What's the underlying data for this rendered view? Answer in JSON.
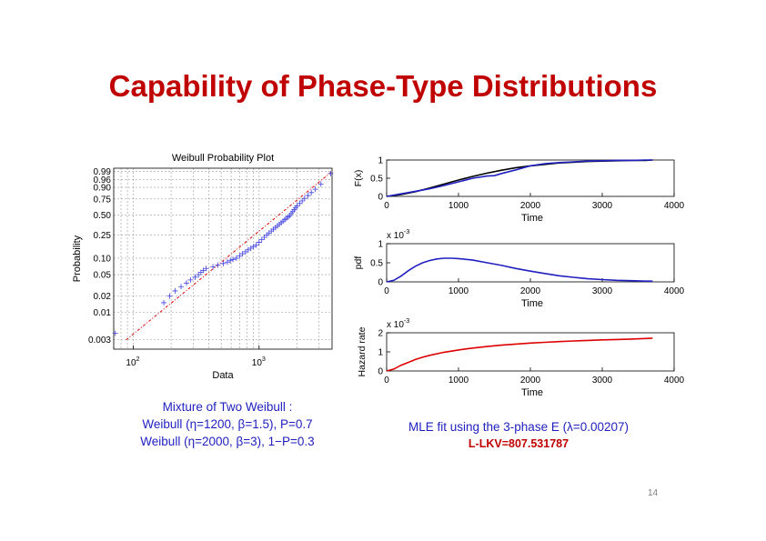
{
  "slide": {
    "title": "Capability of Phase-Type Distributions",
    "caption_left": [
      "Mixture of Two Weibull :",
      "Weibull (η=1200, β=1.5), P=0.7",
      "Weibull (η=2000, β=3), 1−P=0.3"
    ],
    "caption_right": "MLE fit using the 3-phase E (λ=0.00207)",
    "lkv": "L-LKV=807.531787",
    "page_number": "14"
  },
  "chart_data": [
    {
      "type": "scatter",
      "title": "Weibull Probability Plot",
      "xlabel": "Data",
      "ylabel": "Probability",
      "xscale": "log",
      "xlim": [
        70,
        3800
      ],
      "x_ticks": [
        {
          "base": "10",
          "exp": "2"
        },
        {
          "base": "10",
          "exp": "3"
        }
      ],
      "y_ticks": [
        "0.99",
        "0.96",
        "0.90",
        "0.75",
        "0.50",
        "0.25",
        "0.10",
        "0.05",
        "0.02",
        "0.01",
        "0.003"
      ],
      "y_tick_probs": [
        0.99,
        0.96,
        0.9,
        0.75,
        0.5,
        0.25,
        0.1,
        0.05,
        0.02,
        0.01,
        0.003
      ],
      "grid": true,
      "series": [
        {
          "marker": "+",
          "color": "#4040e0",
          "x": [
            72,
            175,
            195,
            215,
            240,
            265,
            285,
            310,
            330,
            345,
            360,
            380,
            430,
            470,
            520,
            560,
            590,
            620,
            660,
            700,
            740,
            780,
            820,
            860,
            900,
            950,
            1000,
            1050,
            1100,
            1150,
            1200,
            1250,
            1300,
            1350,
            1400,
            1450,
            1500,
            1550,
            1600,
            1650,
            1700,
            1750,
            1800,
            1850,
            1900,
            1950,
            2000,
            2100,
            2200,
            2300,
            2450,
            2600,
            2800,
            3100,
            3700
          ],
          "y": [
            0.004,
            0.015,
            0.02,
            0.025,
            0.03,
            0.035,
            0.04,
            0.045,
            0.05,
            0.055,
            0.06,
            0.065,
            0.07,
            0.075,
            0.08,
            0.085,
            0.09,
            0.095,
            0.1,
            0.11,
            0.12,
            0.13,
            0.14,
            0.15,
            0.16,
            0.17,
            0.19,
            0.21,
            0.23,
            0.25,
            0.27,
            0.29,
            0.31,
            0.33,
            0.35,
            0.37,
            0.39,
            0.41,
            0.43,
            0.45,
            0.47,
            0.49,
            0.52,
            0.55,
            0.58,
            0.61,
            0.64,
            0.68,
            0.72,
            0.76,
            0.8,
            0.84,
            0.88,
            0.93,
            0.985
          ]
        }
      ],
      "reference_line": {
        "color": "#dd0000",
        "style": "dash-dot",
        "points": [
          [
            88,
            0.003
          ],
          [
            3800,
            0.99
          ]
        ]
      }
    },
    {
      "type": "line",
      "ylabel": "F(x)",
      "xlabel": "Time",
      "xlim": [
        0,
        4000
      ],
      "ylim": [
        0,
        1
      ],
      "x_ticks": [
        "0",
        "1000",
        "2000",
        "3000",
        "4000"
      ],
      "y_ticks": [
        "0",
        "0.5",
        "1"
      ],
      "series": [
        {
          "color": "#000000",
          "x": [
            0,
            200,
            400,
            600,
            800,
            1000,
            1200,
            1400,
            1600,
            1800,
            2000,
            2200,
            2400,
            2600,
            2800,
            3000,
            3200,
            3400,
            3600,
            3700
          ],
          "y": [
            0,
            0.05,
            0.13,
            0.23,
            0.34,
            0.45,
            0.55,
            0.64,
            0.72,
            0.79,
            0.84,
            0.88,
            0.92,
            0.94,
            0.96,
            0.97,
            0.98,
            0.99,
            0.99,
            1.0
          ]
        },
        {
          "color": "#2020c0",
          "x": [
            0,
            200,
            400,
            600,
            800,
            1000,
            1200,
            1400,
            1500,
            1600,
            1800,
            2000,
            2200,
            2400,
            2600,
            2800,
            3000,
            3200,
            3400,
            3600,
            3700
          ],
          "y": [
            0,
            0.07,
            0.14,
            0.21,
            0.3,
            0.4,
            0.5,
            0.56,
            0.57,
            0.63,
            0.73,
            0.84,
            0.9,
            0.93,
            0.95,
            0.97,
            0.98,
            0.99,
            0.99,
            1.0,
            1.0
          ]
        }
      ]
    },
    {
      "type": "line",
      "ylabel": "pdf",
      "xlabel": "Time",
      "multiplier": {
        "base": "x 10",
        "exp": "-3"
      },
      "xlim": [
        0,
        4000
      ],
      "ylim": [
        0,
        1
      ],
      "x_ticks": [
        "0",
        "1000",
        "2000",
        "3000",
        "4000"
      ],
      "y_ticks": [
        "0",
        "0.5",
        "1"
      ],
      "series": [
        {
          "color": "#2020c0",
          "x": [
            0,
            100,
            200,
            300,
            400,
            500,
            600,
            700,
            800,
            900,
            1000,
            1200,
            1400,
            1600,
            1800,
            2000,
            2200,
            2400,
            2600,
            2800,
            3000,
            3200,
            3400,
            3600,
            3700
          ],
          "y": [
            0,
            0.04,
            0.15,
            0.29,
            0.41,
            0.5,
            0.56,
            0.6,
            0.62,
            0.62,
            0.61,
            0.57,
            0.5,
            0.43,
            0.35,
            0.28,
            0.22,
            0.16,
            0.12,
            0.08,
            0.06,
            0.04,
            0.03,
            0.02,
            0.02
          ]
        }
      ]
    },
    {
      "type": "line",
      "ylabel": "Hazard rate",
      "xlabel": "Time",
      "multiplier": {
        "base": "x 10",
        "exp": "-3"
      },
      "xlim": [
        0,
        4000
      ],
      "ylim": [
        0,
        2
      ],
      "x_ticks": [
        "0",
        "1000",
        "2000",
        "3000",
        "4000"
      ],
      "y_ticks": [
        "0",
        "1",
        "2"
      ],
      "series": [
        {
          "color": "#dd0000",
          "x": [
            0,
            100,
            200,
            300,
            400,
            500,
            600,
            800,
            1000,
            1200,
            1400,
            1600,
            1800,
            2000,
            2200,
            2400,
            2600,
            2800,
            3000,
            3200,
            3400,
            3600,
            3700
          ],
          "y": [
            0,
            0.1,
            0.3,
            0.45,
            0.6,
            0.72,
            0.82,
            0.98,
            1.1,
            1.2,
            1.28,
            1.35,
            1.41,
            1.46,
            1.5,
            1.54,
            1.57,
            1.6,
            1.63,
            1.65,
            1.67,
            1.7,
            1.72
          ]
        }
      ]
    }
  ]
}
